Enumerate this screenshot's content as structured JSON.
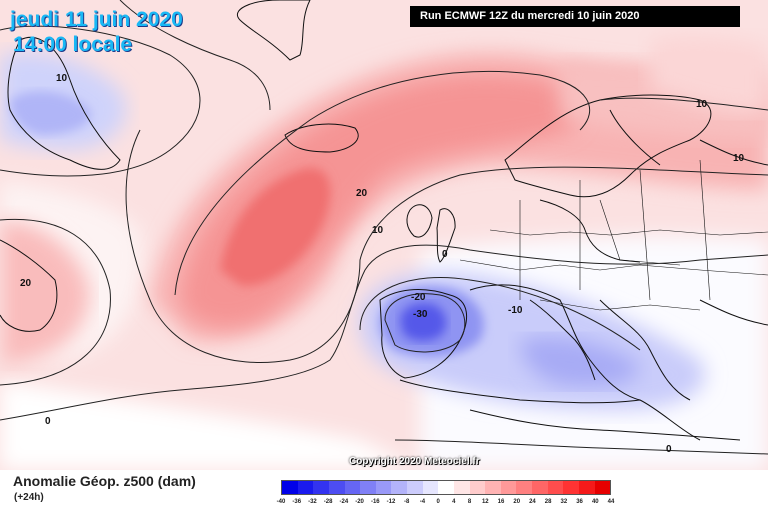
{
  "header": {
    "date": "jeudi 11 juin 2020",
    "time": "14:00 locale",
    "run": "Run ECMWF 12Z du mercredi 10 juin 2020"
  },
  "copyright": "Copyright 2020 Meteociel.fr",
  "footer": {
    "title": "Anomalie Géop. z500 (dam)",
    "subtitle": "(+24h)"
  },
  "legend": {
    "labels": [
      "-40",
      "-36",
      "-32",
      "-28",
      "-24",
      "-20",
      "-16",
      "-12",
      "-8",
      "-4",
      "0",
      "4",
      "8",
      "12",
      "16",
      "20",
      "24",
      "28",
      "32",
      "36",
      "40",
      "44"
    ],
    "colors": [
      "#0000e8",
      "#1a1aee",
      "#3333f0",
      "#4d4df2",
      "#6666f4",
      "#8080f6",
      "#9999f8",
      "#b3b3fa",
      "#ccccfc",
      "#e6e6fe",
      "#ffffff",
      "#ffe6e6",
      "#ffcccc",
      "#ffb3b3",
      "#ff9999",
      "#ff8080",
      "#ff6666",
      "#ff4d4d",
      "#ff3333",
      "#f51a1a",
      "#e60000"
    ]
  },
  "contour_labels": [
    "10",
    "20",
    "10",
    "10",
    "0",
    "0",
    "-20",
    "-30",
    "-10",
    "0",
    "10",
    "20"
  ]
}
